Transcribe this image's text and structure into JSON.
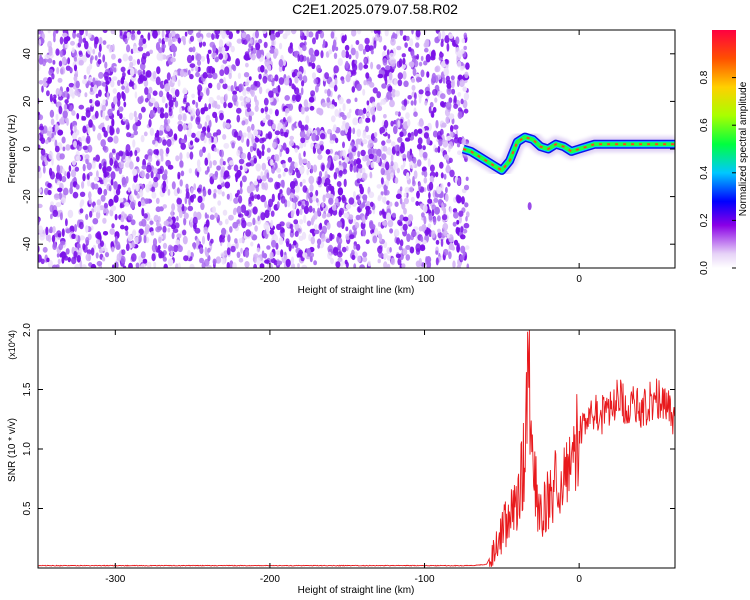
{
  "title": "C2E1.2025.079.07.58.R02",
  "colors": {
    "snr_line": "#e8191c",
    "axis": "#000000"
  },
  "chart_data": [
    {
      "type": "heatmap",
      "xlabel": "Height of straight line (km)",
      "ylabel": "Frequency (Hz)",
      "xlim": [
        -350,
        62
      ],
      "ylim": [
        -50,
        50
      ],
      "xticks": [
        -300,
        -200,
        -100,
        0
      ],
      "yticks": [
        -40,
        -20,
        0,
        20,
        40
      ],
      "colorbar": {
        "label": "Normalized spectral amplitude",
        "range": [
          0,
          1
        ],
        "ticks": [
          "0.0",
          "0.2",
          "0.4",
          "0.6",
          "0.8"
        ],
        "colormap": "rainbow (white-purple-blue-cyan-green-yellow-red)"
      },
      "regions": [
        {
          "x_range": [
            -350,
            -72
          ],
          "description_value": "broadband noise 0.0-0.25"
        },
        {
          "x_range": [
            -72,
            62
          ],
          "description_value": "carrier near 0 Hz, amplitude 0.4-1.0"
        }
      ],
      "carrier_track": [
        {
          "x": -75,
          "y": 0
        },
        {
          "x": -70,
          "y": -1
        },
        {
          "x": -65,
          "y": -3
        },
        {
          "x": -60,
          "y": -5
        },
        {
          "x": -55,
          "y": -7
        },
        {
          "x": -50,
          "y": -9
        },
        {
          "x": -45,
          "y": -5
        },
        {
          "x": -40,
          "y": 3
        },
        {
          "x": -35,
          "y": 5
        },
        {
          "x": -30,
          "y": 4
        },
        {
          "x": -25,
          "y": 1
        },
        {
          "x": -20,
          "y": 0
        },
        {
          "x": -15,
          "y": 2
        },
        {
          "x": -10,
          "y": 1
        },
        {
          "x": -5,
          "y": -1
        },
        {
          "x": 0,
          "y": 0
        },
        {
          "x": 5,
          "y": 1
        },
        {
          "x": 10,
          "y": 2
        },
        {
          "x": 20,
          "y": 2
        },
        {
          "x": 30,
          "y": 2
        },
        {
          "x": 40,
          "y": 2
        },
        {
          "x": 50,
          "y": 2
        },
        {
          "x": 62,
          "y": 2
        }
      ],
      "detached_spot": [
        {
          "x": -32,
          "y": -24
        }
      ]
    },
    {
      "type": "line",
      "xlabel": "Height of straight line (km)",
      "ylabel": "SNR (10 * v/v)",
      "y_multiplier": "(x10^4)",
      "xlim": [
        -350,
        62
      ],
      "ylim": [
        0,
        2.0
      ],
      "xticks": [
        -300,
        -200,
        -100,
        0
      ],
      "yticks": [
        "0.5",
        "1.0",
        "1.5",
        "2.0"
      ],
      "series": [
        {
          "x": [
            -350,
            -300,
            -250,
            -200,
            -150,
            -100,
            -70,
            -60,
            -55,
            -50,
            -45,
            -40,
            -35,
            -33,
            -30,
            -25,
            -20,
            -15,
            -10,
            -5,
            0,
            5,
            10,
            15,
            20,
            25,
            30,
            35,
            40,
            45,
            50,
            55,
            60,
            62
          ],
          "y": [
            0.02,
            0.02,
            0.02,
            0.02,
            0.02,
            0.02,
            0.02,
            0.03,
            0.15,
            0.35,
            0.45,
            0.55,
            1.0,
            1.95,
            0.8,
            0.5,
            0.6,
            0.75,
            0.85,
            1.0,
            1.15,
            1.25,
            1.35,
            1.3,
            1.35,
            1.45,
            1.4,
            1.38,
            1.35,
            1.4,
            1.45,
            1.45,
            1.35,
            1.2
          ]
        }
      ]
    }
  ]
}
